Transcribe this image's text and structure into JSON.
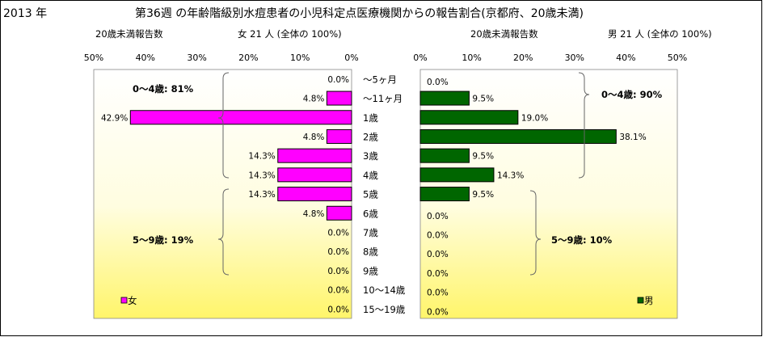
{
  "header": {
    "year": "2013 年",
    "title": "第36週 の年齢階級別水痘患者の小児科定点医療機関からの報告割合(京都府、20歳未満)"
  },
  "female": {
    "subtitle_left": "20歳未満報告数",
    "subtitle_right": "女  21 人 (全体の  100%)",
    "legend": "女",
    "group1_note": "0～4歳: 81%",
    "group2_note": "5～9歳: 19%",
    "color": "#ff00ff"
  },
  "male": {
    "subtitle_left": "20歳未満報告数",
    "subtitle_right": "男  21 人 (全体の  100%)",
    "legend": "男",
    "group1_note": "0～4歳: 90%",
    "group2_note": "5～9歳: 10%",
    "color": "#006600"
  },
  "chart_data": [
    {
      "type": "bar",
      "orientation": "horizontal",
      "direction": "right-to-left",
      "categories": [
        "～5ヶ月",
        "～11ヶ月",
        "1歳",
        "2歳",
        "3歳",
        "4歳",
        "5歳",
        "6歳",
        "7歳",
        "8歳",
        "9歳",
        "10～14歳",
        "15～19歳"
      ],
      "series": [
        {
          "name": "女",
          "values": [
            0.0,
            4.8,
            42.9,
            4.8,
            14.3,
            14.3,
            14.3,
            4.8,
            0.0,
            0.0,
            0.0,
            0.0,
            0.0
          ]
        }
      ],
      "value_labels": [
        "0.0%",
        "4.8%",
        "42.9%",
        "4.8%",
        "14.3%",
        "14.3%",
        "14.3%",
        "4.8%",
        "0.0%",
        "0.0%",
        "0.0%",
        "0.0%",
        "0.0%"
      ],
      "xticks": [
        "50%",
        "40%",
        "30%",
        "20%",
        "10%",
        "0%"
      ],
      "xlim": [
        0,
        50
      ],
      "grid": false,
      "legend": "bottom-left"
    },
    {
      "type": "bar",
      "orientation": "horizontal",
      "direction": "left-to-right",
      "categories": [
        "～5ヶ月",
        "～11ヶ月",
        "1歳",
        "2歳",
        "3歳",
        "4歳",
        "5歳",
        "6歳",
        "7歳",
        "8歳",
        "9歳",
        "10～14歳",
        "15～19歳"
      ],
      "series": [
        {
          "name": "男",
          "values": [
            0.0,
            9.5,
            19.0,
            38.1,
            9.5,
            14.3,
            9.5,
            0.0,
            0.0,
            0.0,
            0.0,
            0.0,
            0.0
          ]
        }
      ],
      "value_labels": [
        "0.0%",
        "9.5%",
        "19.0%",
        "38.1%",
        "9.5%",
        "14.3%",
        "9.5%",
        "0.0%",
        "0.0%",
        "0.0%",
        "0.0%",
        "0.0%",
        "0.0%"
      ],
      "xticks": [
        "0%",
        "10%",
        "20%",
        "30%",
        "40%",
        "50%"
      ],
      "xlim": [
        0,
        50
      ],
      "grid": false,
      "legend": "bottom-right"
    }
  ]
}
